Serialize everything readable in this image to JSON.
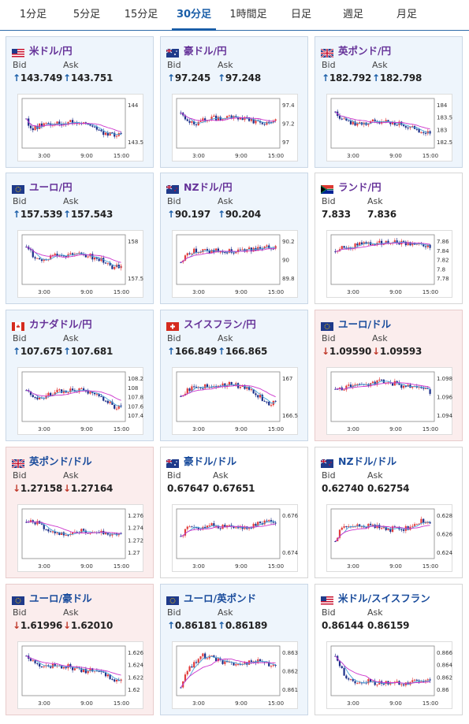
{
  "tabs": [
    {
      "label": "1分足",
      "active": false
    },
    {
      "label": "5分足",
      "active": false
    },
    {
      "label": "15分足",
      "active": false
    },
    {
      "label": "30分足",
      "active": true
    },
    {
      "label": "1時間足",
      "active": false
    },
    {
      "label": "日足",
      "active": false
    },
    {
      "label": "週足",
      "active": false
    },
    {
      "label": "月足",
      "active": false
    }
  ],
  "labels": {
    "bid": "Bid",
    "ask": "Ask"
  },
  "x_ticks": [
    "3:00",
    "9:00",
    "15:00"
  ],
  "cards": [
    {
      "pair": "米ドル/円",
      "flag": "us",
      "dir": "up",
      "bid": "143.749",
      "ask": "143.751",
      "yticks": [
        "144",
        "143.5"
      ],
      "trend": [
        0.45,
        0.62,
        0.55,
        0.5,
        0.52,
        0.48,
        0.5,
        0.46,
        0.5,
        0.55,
        0.6,
        0.68,
        0.75,
        0.78,
        0.72
      ]
    },
    {
      "pair": "豪ドル/円",
      "flag": "au",
      "dir": "up",
      "bid": "97.245",
      "ask": "97.248",
      "yticks": [
        "97.4",
        "97.2",
        "97"
      ],
      "trend": [
        0.3,
        0.45,
        0.55,
        0.42,
        0.4,
        0.38,
        0.4,
        0.38,
        0.35,
        0.4,
        0.42,
        0.45,
        0.5,
        0.48,
        0.42
      ]
    },
    {
      "pair": "英ポンド/円",
      "flag": "uk",
      "dir": "up",
      "bid": "182.792",
      "ask": "182.798",
      "yticks": [
        "184",
        "183.5",
        "183",
        "182.5"
      ],
      "trend": [
        0.25,
        0.4,
        0.5,
        0.5,
        0.5,
        0.48,
        0.47,
        0.46,
        0.5,
        0.5,
        0.55,
        0.55,
        0.65,
        0.72,
        0.68
      ]
    },
    {
      "pair": "ユーロ/円",
      "flag": "eu",
      "dir": "up",
      "bid": "157.539",
      "ask": "157.543",
      "yticks": [
        "158",
        "157.5"
      ],
      "trend": [
        0.2,
        0.4,
        0.5,
        0.45,
        0.42,
        0.4,
        0.38,
        0.36,
        0.35,
        0.4,
        0.45,
        0.5,
        0.6,
        0.7,
        0.62
      ]
    },
    {
      "pair": "NZドル/円",
      "flag": "nz",
      "dir": "up",
      "bid": "90.197",
      "ask": "90.204",
      "yticks": [
        "90.2",
        "90",
        "89.8"
      ],
      "trend": [
        0.55,
        0.35,
        0.3,
        0.32,
        0.3,
        0.3,
        0.28,
        0.3,
        0.32,
        0.3,
        0.28,
        0.25,
        0.22,
        0.2,
        0.22
      ]
    },
    {
      "pair": "ランド/円",
      "flag": "za",
      "dir": "none",
      "bid": "7.833",
      "ask": "7.836",
      "yticks": [
        "7.86",
        "7.84",
        "7.82",
        "7.8",
        "7.78"
      ],
      "trend": [
        0.3,
        0.2,
        0.25,
        0.15,
        0.1,
        0.12,
        0.12,
        0.1,
        0.1,
        0.12,
        0.1,
        0.15,
        0.12,
        0.15,
        0.18
      ]
    },
    {
      "pair": "カナダドル/円",
      "flag": "ca",
      "dir": "up",
      "bid": "107.675",
      "ask": "107.681",
      "yticks": [
        "108.2",
        "108",
        "107.8",
        "107.6",
        "107.4"
      ],
      "trend": [
        0.3,
        0.5,
        0.55,
        0.45,
        0.4,
        0.38,
        0.35,
        0.36,
        0.33,
        0.4,
        0.42,
        0.5,
        0.62,
        0.75,
        0.68
      ]
    },
    {
      "pair": "スイスフラン/円",
      "flag": "ch",
      "dir": "up",
      "bid": "166.849",
      "ask": "166.865",
      "yticks": [
        "167",
        "166.5"
      ],
      "trend": [
        0.5,
        0.35,
        0.3,
        0.3,
        0.25,
        0.28,
        0.25,
        0.2,
        0.22,
        0.28,
        0.3,
        0.4,
        0.55,
        0.72,
        0.6
      ]
    },
    {
      "pair": "ユーロ/ドル",
      "flag": "eu",
      "dir": "down",
      "bid": "1.09590",
      "ask": "1.09593",
      "yticks": [
        "1.098",
        "1.096",
        "1.094"
      ],
      "trend": [
        0.35,
        0.3,
        0.25,
        0.25,
        0.22,
        0.2,
        0.18,
        0.15,
        0.18,
        0.2,
        0.25,
        0.28,
        0.3,
        0.32,
        0.38
      ]
    },
    {
      "pair": "英ポンド/ドル",
      "flag": "uk",
      "dir": "down",
      "bid": "1.27158",
      "ask": "1.27164",
      "yticks": [
        "1.276",
        "1.274",
        "1.272",
        "1.27"
      ],
      "trend": [
        0.25,
        0.2,
        0.3,
        0.4,
        0.42,
        0.5,
        0.48,
        0.45,
        0.42,
        0.45,
        0.45,
        0.47,
        0.5,
        0.5,
        0.52
      ]
    },
    {
      "pair": "豪ドル/ドル",
      "flag": "au",
      "dir": "none",
      "bid": "0.67647",
      "ask": "0.67651",
      "yticks": [
        "0.676",
        "0.674"
      ],
      "trend": [
        0.6,
        0.35,
        0.3,
        0.35,
        0.32,
        0.3,
        0.35,
        0.33,
        0.35,
        0.36,
        0.34,
        0.3,
        0.25,
        0.2,
        0.22
      ]
    },
    {
      "pair": "NZドル/ドル",
      "flag": "nz",
      "dir": "none",
      "bid": "0.62740",
      "ask": "0.62754",
      "yticks": [
        "0.628",
        "0.626",
        "0.624"
      ],
      "trend": [
        0.7,
        0.3,
        0.32,
        0.35,
        0.3,
        0.32,
        0.33,
        0.35,
        0.4,
        0.38,
        0.4,
        0.35,
        0.25,
        0.2,
        0.22
      ]
    },
    {
      "pair": "ユーロ/豪ドル",
      "flag": "eu",
      "dir": "down",
      "bid": "1.61996",
      "ask": "1.62010",
      "yticks": [
        "1.626",
        "1.624",
        "1.622",
        "1.62"
      ],
      "trend": [
        0.2,
        0.3,
        0.35,
        0.42,
        0.38,
        0.4,
        0.38,
        0.45,
        0.48,
        0.5,
        0.5,
        0.55,
        0.62,
        0.72,
        0.75
      ]
    },
    {
      "pair": "ユーロ/英ポンド",
      "flag": "eu",
      "dir": "up",
      "bid": "0.86181",
      "ask": "0.86189",
      "yticks": [
        "0.863",
        "0.862",
        "0.861"
      ],
      "trend": [
        0.9,
        0.5,
        0.3,
        0.15,
        0.18,
        0.2,
        0.3,
        0.3,
        0.35,
        0.3,
        0.32,
        0.3,
        0.28,
        0.35,
        0.4
      ]
    },
    {
      "pair": "米ドル/スイスフラン",
      "flag": "us",
      "dir": "none",
      "bid": "0.86144",
      "ask": "0.86159",
      "yticks": [
        "0.866",
        "0.864",
        "0.862",
        "0.86"
      ],
      "trend": [
        0.15,
        0.5,
        0.7,
        0.8,
        0.72,
        0.75,
        0.78,
        0.78,
        0.8,
        0.76,
        0.78,
        0.76,
        0.74,
        0.72,
        0.72
      ]
    }
  ]
}
